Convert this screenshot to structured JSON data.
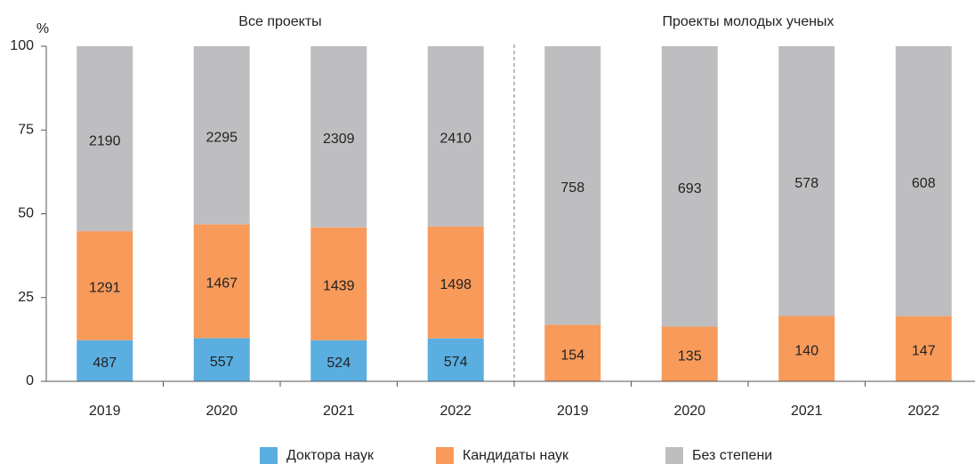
{
  "chart_data": {
    "type": "bar",
    "stacking": "percent",
    "ylabel": "%",
    "ylim": [
      0,
      100
    ],
    "yticks": [
      0,
      25,
      50,
      75,
      100
    ],
    "groups": [
      {
        "title": "Все проекты",
        "categories": [
          "2019",
          "2020",
          "2021",
          "2022"
        ],
        "series": [
          {
            "name": "Доктора наук",
            "color": "#5aaee0",
            "values": [
              487,
              557,
              524,
              574
            ]
          },
          {
            "name": "Кандидаты наук",
            "color": "#f79a5a",
            "values": [
              1291,
              1467,
              1439,
              1498
            ]
          },
          {
            "name": "Без степени",
            "color": "#bebec1",
            "values": [
              2190,
              2295,
              2309,
              2410
            ]
          }
        ]
      },
      {
        "title": "Проекты молодых ученых",
        "categories": [
          "2019",
          "2020",
          "2021",
          "2022"
        ],
        "series": [
          {
            "name": "Кандидаты наук",
            "color": "#f79a5a",
            "values": [
              154,
              135,
              140,
              147
            ]
          },
          {
            "name": "Без степени",
            "color": "#bebec1",
            "values": [
              758,
              693,
              578,
              608
            ]
          }
        ]
      }
    ]
  }
}
